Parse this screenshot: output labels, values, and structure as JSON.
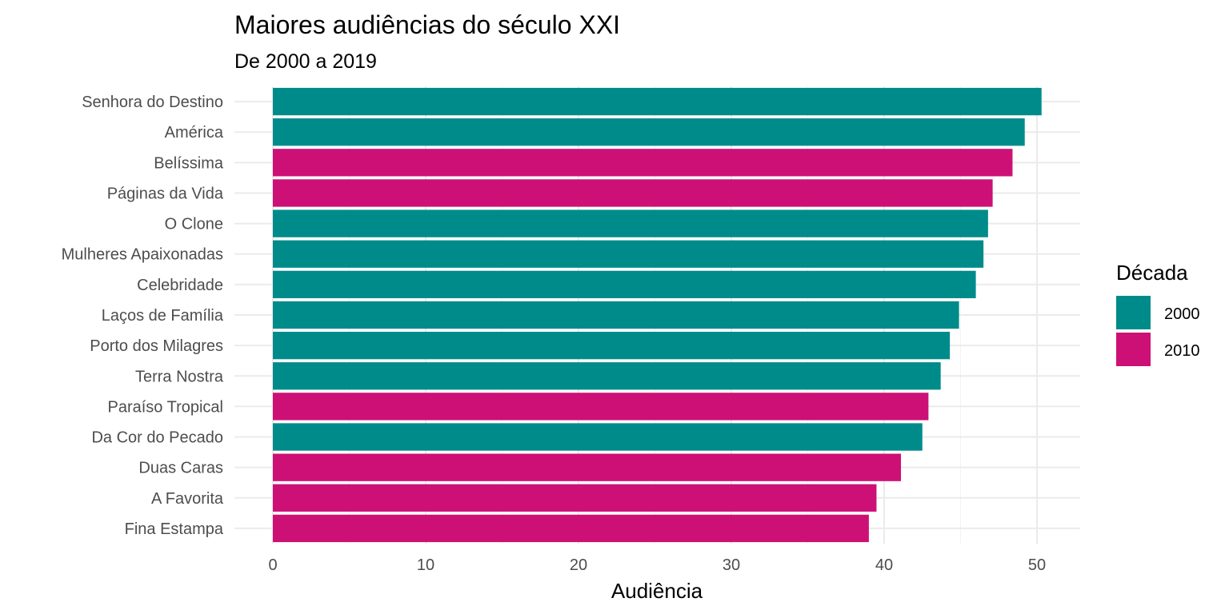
{
  "chart_data": {
    "type": "bar",
    "orientation": "horizontal",
    "title": "Maiores audiências do século XXI",
    "subtitle": "De 2000 a 2019",
    "xlabel": "Audiência",
    "ylabel": "",
    "xlim": [
      0,
      52.8
    ],
    "xticks": [
      0,
      10,
      20,
      30,
      40,
      50
    ],
    "grid": true,
    "legend": {
      "title": "Década",
      "position": "right",
      "entries": [
        {
          "label": "2000",
          "color": "#008B8B"
        },
        {
          "label": "2010",
          "color": "#CD1076"
        }
      ]
    },
    "categories": [
      "Senhora do Destino",
      "América",
      "Belíssima",
      "Páginas da Vida",
      "O Clone",
      "Mulheres Apaixonadas",
      "Celebridade",
      "Laços de Família",
      "Porto dos Milagres",
      "Terra Nostra",
      "Paraíso Tropical",
      "Da Cor do Pecado",
      "Duas Caras",
      "A Favorita",
      "Fina Estampa"
    ],
    "values": [
      50.3,
      49.2,
      48.4,
      47.1,
      46.8,
      46.5,
      46.0,
      44.9,
      44.3,
      43.7,
      42.9,
      42.5,
      41.1,
      39.5,
      39.0
    ],
    "decade": [
      "2000",
      "2000",
      "2010",
      "2010",
      "2000",
      "2000",
      "2000",
      "2000",
      "2000",
      "2000",
      "2010",
      "2000",
      "2010",
      "2010",
      "2010"
    ]
  }
}
